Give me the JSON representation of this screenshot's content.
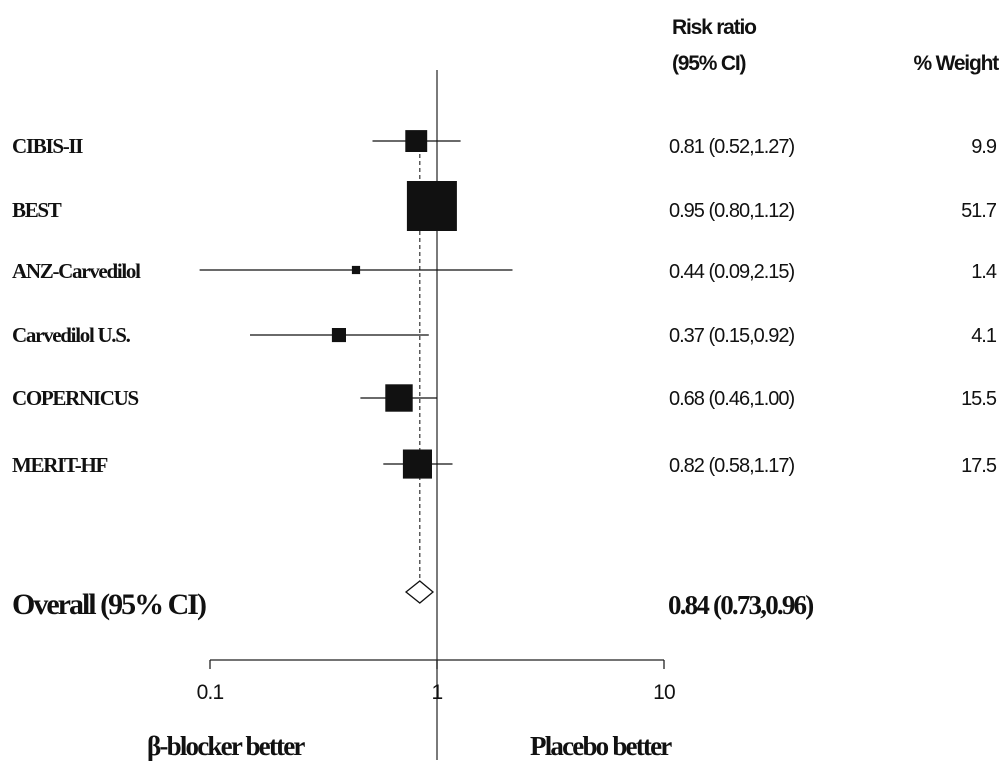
{
  "chart_data": {
    "type": "forest",
    "x_scale": "log",
    "xlim": [
      0.1,
      10
    ],
    "x_ticks": [
      {
        "value": 0.1,
        "label": "0.1"
      },
      {
        "value": 1,
        "label": "1"
      },
      {
        "value": 10,
        "label": "10"
      }
    ],
    "reference_value": 1,
    "headers": {
      "risk_ratio_line1": "Risk ratio",
      "risk_ratio_line2": "(95% CI)",
      "weight": "% Weight"
    },
    "studies": [
      {
        "name": "CIBIS-II",
        "rr": 0.81,
        "lo": 0.52,
        "hi": 1.27,
        "weight": 9.9,
        "ci_text": "0.81 (0.52,1.27)",
        "weight_text": "9.9"
      },
      {
        "name": "BEST",
        "rr": 0.95,
        "lo": 0.8,
        "hi": 1.12,
        "weight": 51.7,
        "ci_text": "0.95 (0.80,1.12)",
        "weight_text": "51.7"
      },
      {
        "name": "ANZ-Carvedilol",
        "rr": 0.44,
        "lo": 0.09,
        "hi": 2.15,
        "weight": 1.4,
        "ci_text": "0.44 (0.09,2.15)",
        "weight_text": "1.4"
      },
      {
        "name": "Carvedilol U.S.",
        "rr": 0.37,
        "lo": 0.15,
        "hi": 0.92,
        "weight": 4.1,
        "ci_text": "0.37 (0.15,0.92)",
        "weight_text": "4.1"
      },
      {
        "name": "COPERNICUS",
        "rr": 0.68,
        "lo": 0.46,
        "hi": 1.0,
        "weight": 15.5,
        "ci_text": "0.68 (0.46,1.00)",
        "weight_text": "15.5"
      },
      {
        "name": "MERIT-HF",
        "rr": 0.82,
        "lo": 0.58,
        "hi": 1.17,
        "weight": 17.5,
        "ci_text": "0.82 (0.58,1.17)",
        "weight_text": "17.5"
      }
    ],
    "overall": {
      "label": "Overall (95% CI)",
      "rr": 0.84,
      "lo": 0.73,
      "hi": 0.96,
      "ci_text": "0.84 (0.73,0.96)"
    },
    "axis_notes": {
      "left": "β-blocker better",
      "right": "Placebo better"
    }
  }
}
